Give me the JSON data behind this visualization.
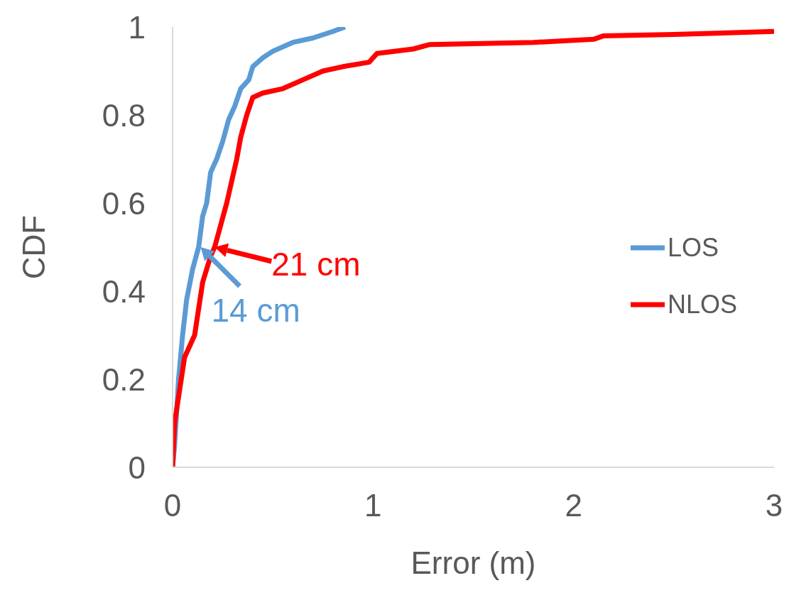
{
  "chart_data": {
    "type": "line",
    "xlabel": "Error (m)",
    "ylabel": "CDF",
    "xlim": [
      0,
      3
    ],
    "xticks": [
      0,
      1,
      2,
      3
    ],
    "ylim": [
      0,
      1
    ],
    "yticks": [
      0,
      0.2,
      0.4,
      0.6,
      0.8,
      1
    ],
    "grid": false,
    "legend": "right",
    "marker": "none",
    "line_style": "solid",
    "series": [
      {
        "name": "LOS",
        "color": "#5b9bd5",
        "x": [
          0,
          0.01,
          0.03,
          0.05,
          0.07,
          0.1,
          0.13,
          0.15,
          0.17,
          0.19,
          0.22,
          0.25,
          0.28,
          0.31,
          0.34,
          0.38,
          0.4,
          0.45,
          0.5,
          0.6,
          0.7,
          0.8,
          0.86
        ],
        "values": [
          0,
          0.05,
          0.2,
          0.3,
          0.38,
          0.45,
          0.5,
          0.57,
          0.6,
          0.67,
          0.7,
          0.74,
          0.79,
          0.82,
          0.86,
          0.88,
          0.91,
          0.93,
          0.945,
          0.965,
          0.975,
          0.99,
          1
        ]
      },
      {
        "name": "NLOS",
        "color": "#ff0000",
        "x": [
          0,
          0.01,
          0.03,
          0.06,
          0.11,
          0.15,
          0.19,
          0.21,
          0.24,
          0.27,
          0.3,
          0.32,
          0.34,
          0.37,
          0.4,
          0.45,
          0.55,
          0.65,
          0.75,
          0.85,
          0.98,
          1.02,
          1.2,
          1.28,
          1.5,
          1.8,
          2.1,
          2.15,
          2.5,
          3
        ],
        "values": [
          0,
          0.1,
          0.16,
          0.25,
          0.3,
          0.42,
          0.48,
          0.5,
          0.55,
          0.6,
          0.66,
          0.7,
          0.75,
          0.8,
          0.84,
          0.85,
          0.86,
          0.88,
          0.9,
          0.91,
          0.92,
          0.94,
          0.95,
          0.96,
          0.962,
          0.965,
          0.972,
          0.98,
          0.983,
          0.99
        ]
      }
    ],
    "annotations": [
      {
        "text": "14 cm",
        "x": 0.14,
        "y": 0.5
      },
      {
        "text": "21 cm",
        "x": 0.21,
        "y": 0.5
      }
    ]
  }
}
